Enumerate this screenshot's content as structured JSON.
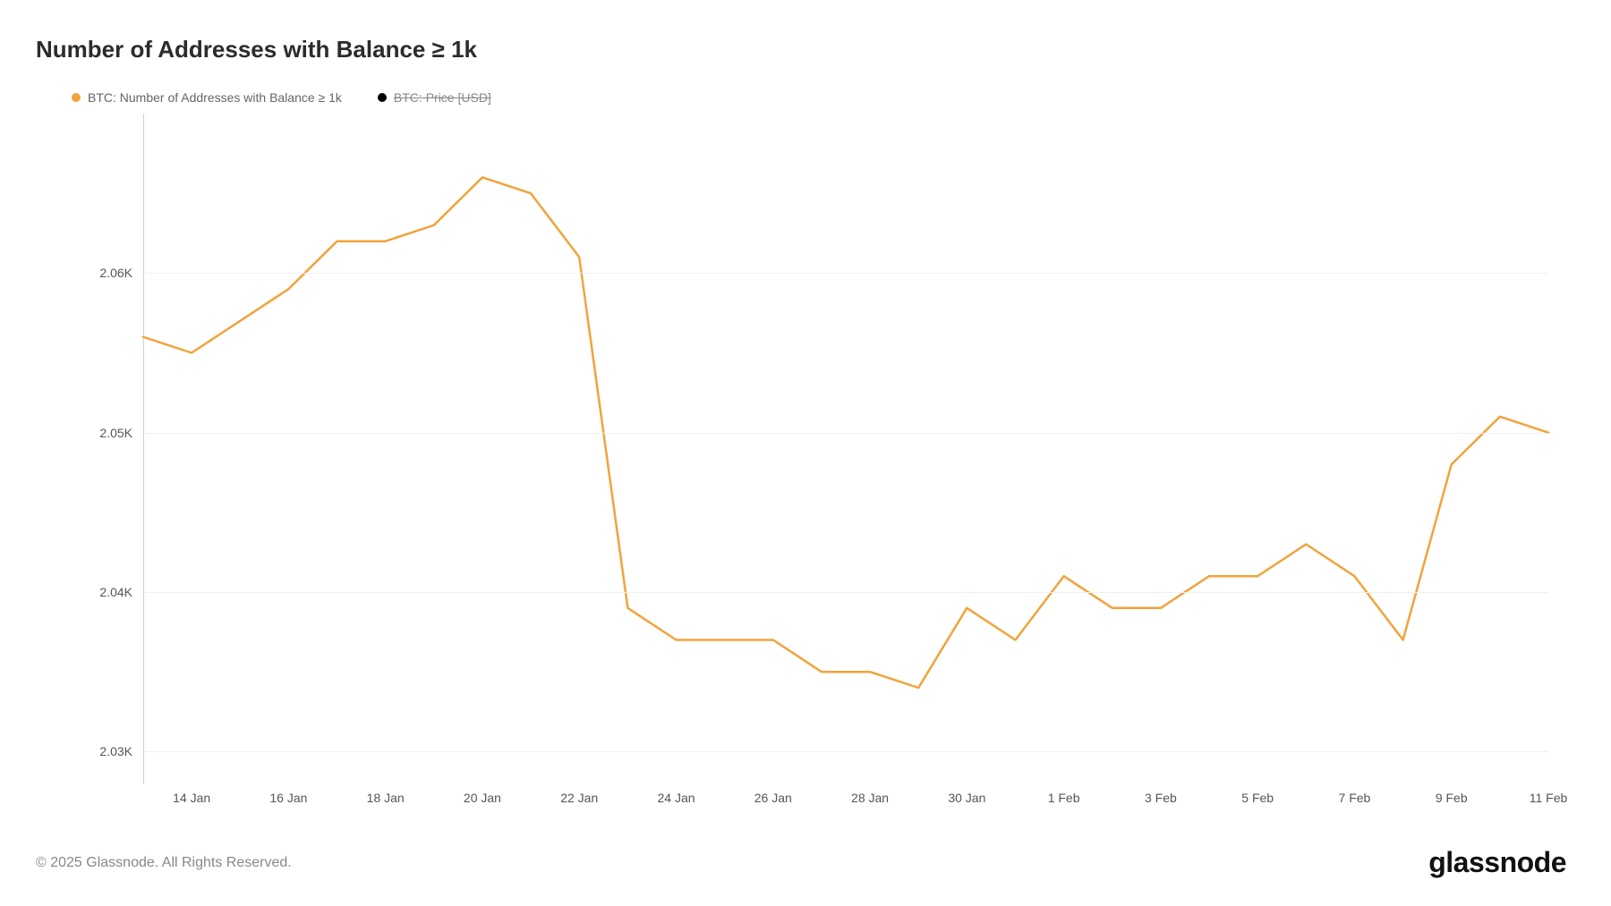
{
  "chart": {
    "type": "line",
    "title": "Number of Addresses with Balance ≥ 1k",
    "legend": [
      {
        "label": "BTC: Number of Addresses with Balance ≥ 1k",
        "color": "#f2a33c",
        "enabled": true
      },
      {
        "label": "BTC: Price [USD]",
        "color": "#000000",
        "enabled": false
      }
    ],
    "series": {
      "color": "#f2a33c",
      "line_width": 2.5,
      "data": [
        {
          "x": "13 Jan",
          "y": 2056
        },
        {
          "x": "14 Jan",
          "y": 2055
        },
        {
          "x": "15 Jan",
          "y": 2057
        },
        {
          "x": "16 Jan",
          "y": 2059
        },
        {
          "x": "17 Jan",
          "y": 2062
        },
        {
          "x": "18 Jan",
          "y": 2062
        },
        {
          "x": "19 Jan",
          "y": 2063
        },
        {
          "x": "20 Jan",
          "y": 2066
        },
        {
          "x": "21 Jan",
          "y": 2065
        },
        {
          "x": "22 Jan",
          "y": 2061
        },
        {
          "x": "23 Jan",
          "y": 2039
        },
        {
          "x": "24 Jan",
          "y": 2037
        },
        {
          "x": "25 Jan",
          "y": 2037
        },
        {
          "x": "26 Jan",
          "y": 2037
        },
        {
          "x": "27 Jan",
          "y": 2035
        },
        {
          "x": "28 Jan",
          "y": 2035
        },
        {
          "x": "29 Jan",
          "y": 2034
        },
        {
          "x": "30 Jan",
          "y": 2039
        },
        {
          "x": "31 Jan",
          "y": 2037
        },
        {
          "x": "1 Feb",
          "y": 2041
        },
        {
          "x": "2 Feb",
          "y": 2039
        },
        {
          "x": "3 Feb",
          "y": 2039
        },
        {
          "x": "4 Feb",
          "y": 2041
        },
        {
          "x": "5 Feb",
          "y": 2041
        },
        {
          "x": "6 Feb",
          "y": 2043
        },
        {
          "x": "7 Feb",
          "y": 2041
        },
        {
          "x": "8 Feb",
          "y": 2037
        },
        {
          "x": "9 Feb",
          "y": 2048
        },
        {
          "x": "10 Feb",
          "y": 2051
        },
        {
          "x": "11 Feb",
          "y": 2050
        }
      ]
    },
    "y_axis": {
      "min": 2028,
      "max": 2070,
      "ticks": [
        {
          "value": 2030,
          "label": "2.03K"
        },
        {
          "value": 2040,
          "label": "2.04K"
        },
        {
          "value": 2050,
          "label": "2.05K"
        },
        {
          "value": 2060,
          "label": "2.06K"
        }
      ],
      "grid_color": "#f0f0f0"
    },
    "x_axis": {
      "ticks": [
        "14 Jan",
        "16 Jan",
        "18 Jan",
        "20 Jan",
        "22 Jan",
        "24 Jan",
        "26 Jan",
        "28 Jan",
        "30 Jan",
        "1 Feb",
        "3 Feb",
        "5 Feb",
        "7 Feb",
        "9 Feb",
        "11 Feb"
      ]
    },
    "background_color": "#ffffff",
    "title_fontsize": 26,
    "title_color": "#2c2c2c",
    "tick_fontsize": 14,
    "tick_color": "#555555"
  },
  "footer": {
    "copyright": "© 2025 Glassnode. All Rights Reserved.",
    "brand": "glassnode"
  }
}
